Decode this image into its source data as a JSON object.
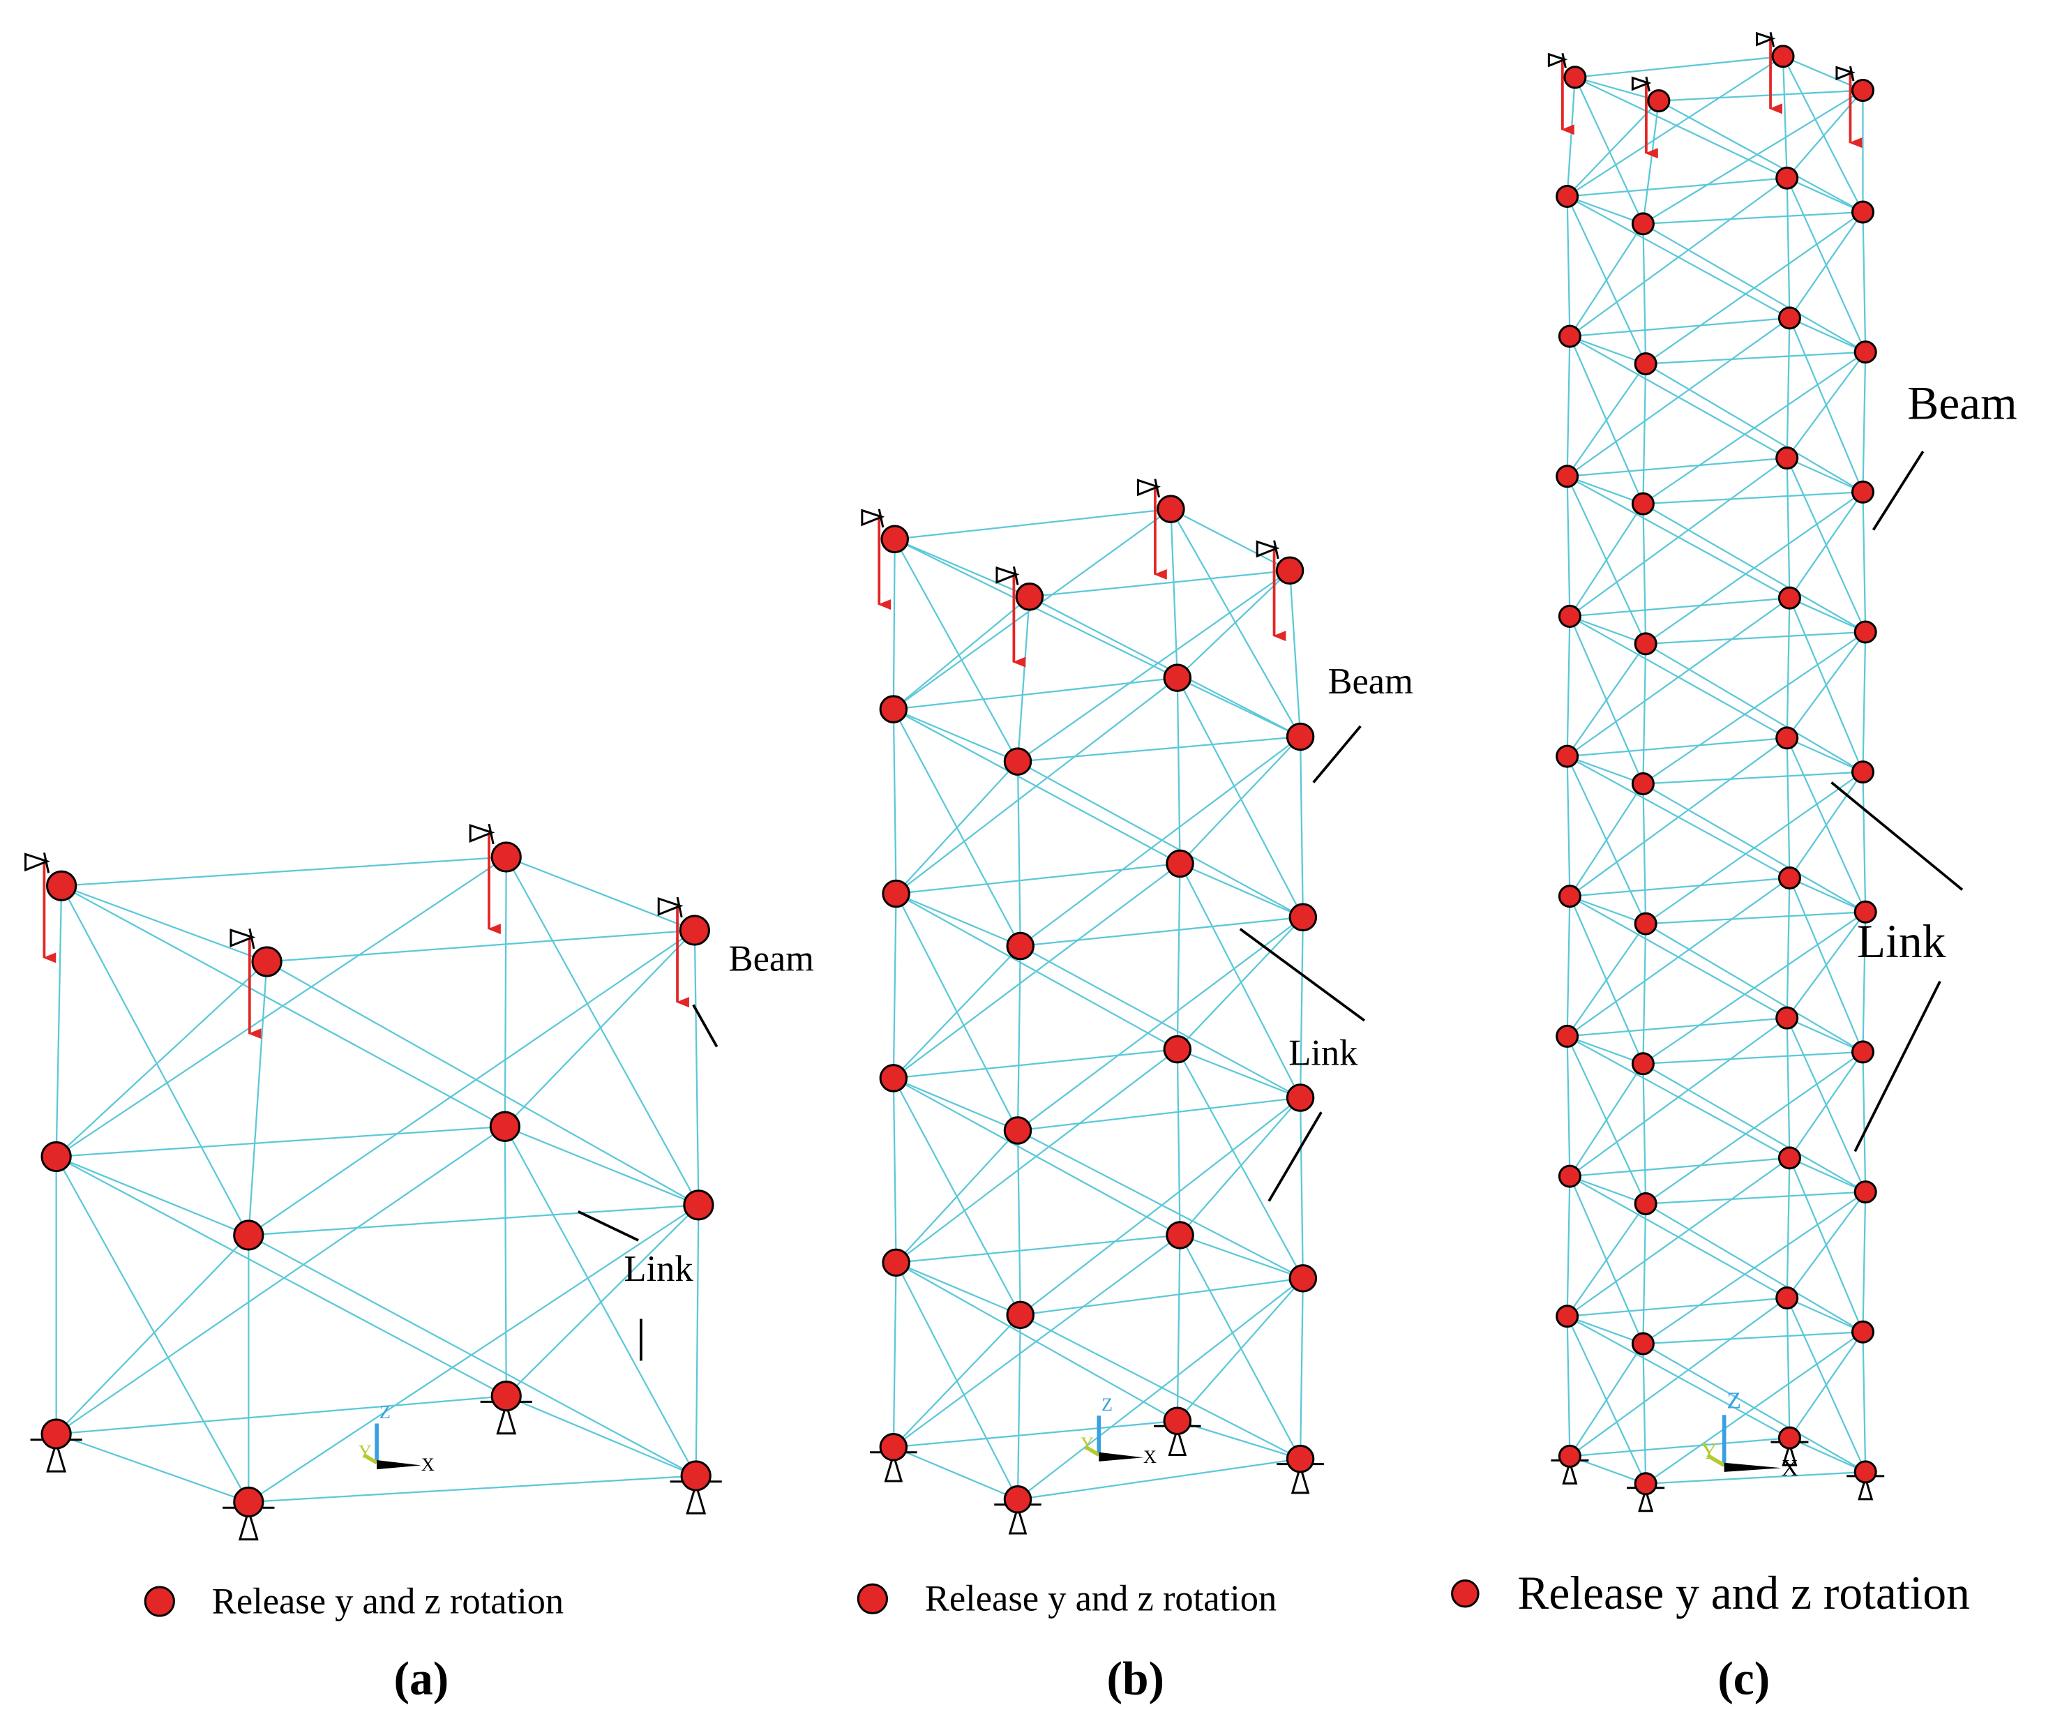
{
  "panels": [
    {
      "label": "(a)",
      "legend": "Release y and z rotation",
      "beam": "Beam",
      "link": "Link",
      "axes": {
        "z": "Z",
        "y": "Y",
        "x": "X"
      }
    },
    {
      "label": "(b)",
      "legend": "Release y and z rotation",
      "beam": "Beam",
      "link": "Link",
      "axes": {
        "z": "Z",
        "y": "Y",
        "x": "X"
      }
    },
    {
      "label": "(c)",
      "legend": "Release y and z rotation",
      "beam": "Beam",
      "link": "Link",
      "axes": {
        "z": "Z",
        "y": "Y",
        "x": "X"
      }
    }
  ]
}
